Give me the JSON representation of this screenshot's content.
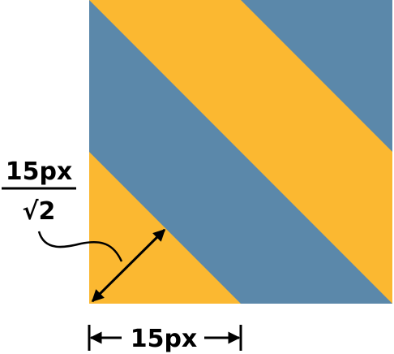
{
  "diagram": {
    "diagonal_label": {
      "numerator": "15px",
      "denominator": "√2"
    },
    "width_label": "15px"
  }
}
